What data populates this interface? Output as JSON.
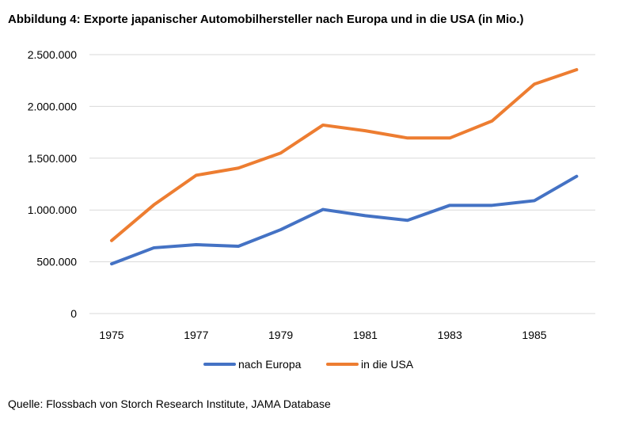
{
  "chart_data": {
    "type": "line",
    "title": "Abbildung 4: Exporte japanischer Automobilhersteller nach Europa und in die USA (in Mio.)",
    "x": [
      1975,
      1976,
      1977,
      1978,
      1979,
      1980,
      1981,
      1982,
      1983,
      1984,
      1985,
      1986
    ],
    "x_tick_labels": [
      "1975",
      "1977",
      "1979",
      "1981",
      "1983",
      "1985"
    ],
    "y_tick_labels": [
      "0",
      "500.000",
      "1.000.000",
      "1.500.000",
      "2.000.000",
      "2.500.000"
    ],
    "ylim": [
      0,
      2500000
    ],
    "grid": true,
    "legend_position": "bottom",
    "series": [
      {
        "name": "nach Europa",
        "color": "#4472C4",
        "values": [
          480000,
          635000,
          665000,
          650000,
          810000,
          1005000,
          945000,
          900000,
          1045000,
          1045000,
          1090000,
          1325000
        ]
      },
      {
        "name": "in die USA",
        "color": "#ED7D31",
        "values": [
          705000,
          1050000,
          1335000,
          1405000,
          1550000,
          1820000,
          1765000,
          1695000,
          1695000,
          1860000,
          2215000,
          2355000
        ]
      }
    ]
  },
  "source": "Quelle: Flossbach von Storch Research Institute, JAMA Database"
}
